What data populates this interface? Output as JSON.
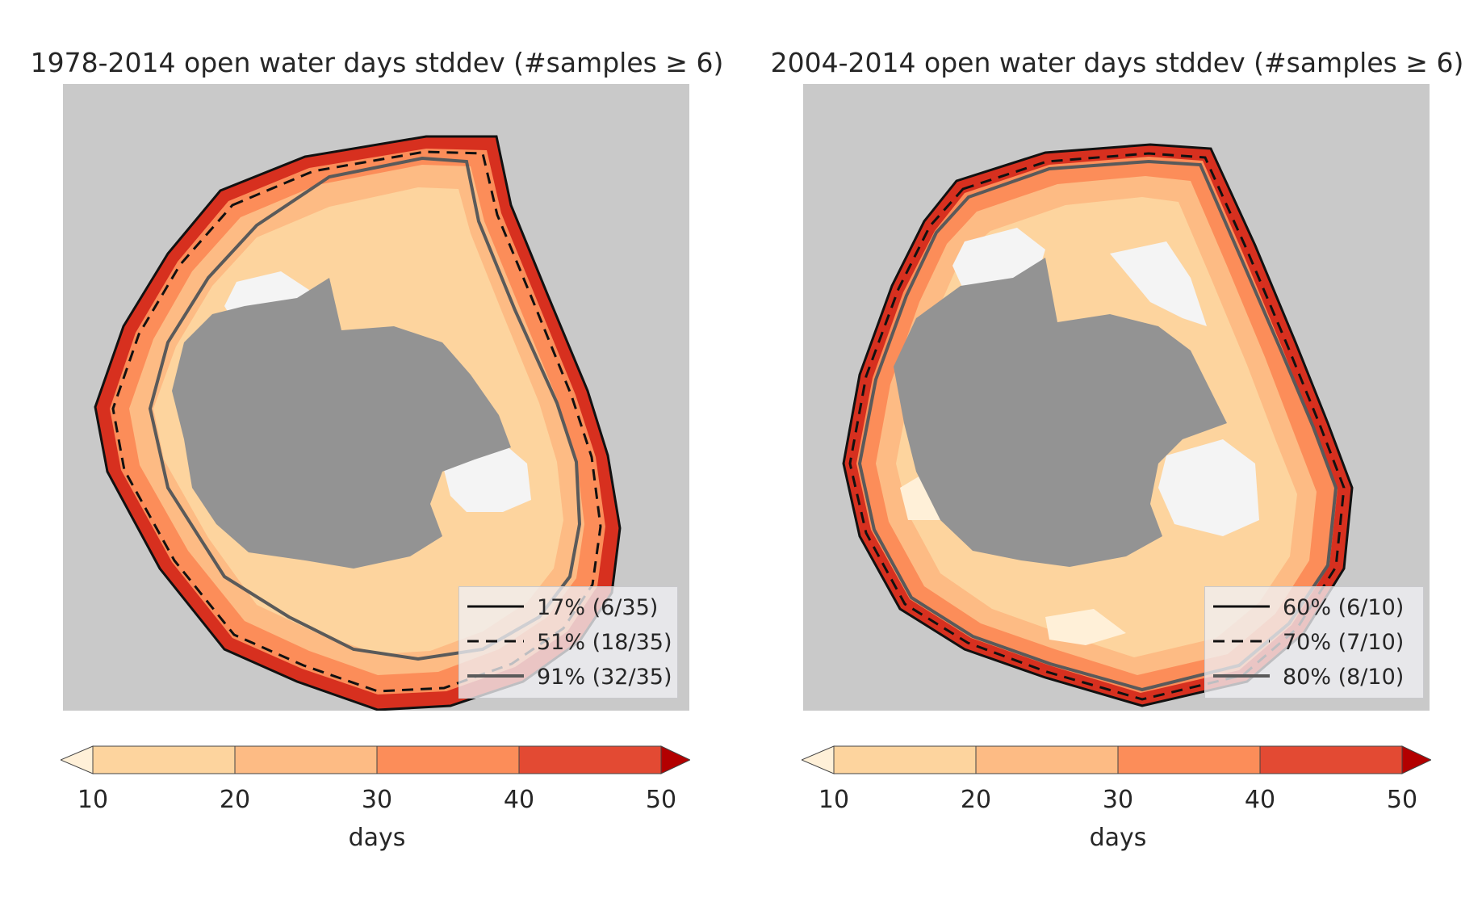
{
  "panels": [
    {
      "title": "1978-2014 open water days stddev (#samples ≥ 6)",
      "legend": [
        {
          "style": "solid-black",
          "label": "17% (6/35)"
        },
        {
          "style": "dashed-black",
          "label": "51% (18/35)"
        },
        {
          "style": "solid-gray",
          "label": "91% (32/35)"
        }
      ],
      "colorbar": {
        "ticks": [
          "10",
          "20",
          "30",
          "40",
          "50"
        ],
        "label": "days"
      }
    },
    {
      "title": "2004-2014 open water days stddev (#samples ≥ 6)",
      "legend": [
        {
          "style": "solid-black",
          "label": "60% (6/10)"
        },
        {
          "style": "dashed-black",
          "label": "70% (7/10)"
        },
        {
          "style": "solid-gray",
          "label": "80% (8/10)"
        }
      ],
      "colorbar": {
        "ticks": [
          "10",
          "20",
          "30",
          "40",
          "50"
        ],
        "label": "days"
      }
    }
  ],
  "colors": {
    "background_land": "#c9c9c9",
    "antarctica": "#939393",
    "ice_shelf": "#f4f4f4",
    "under": "#fff0d8",
    "bin_10_20": "#fdd49e",
    "bin_20_30": "#fdbb84",
    "bin_30_40": "#fc8d59",
    "bin_40_50": "#e34a33",
    "over": "#b30000"
  }
}
